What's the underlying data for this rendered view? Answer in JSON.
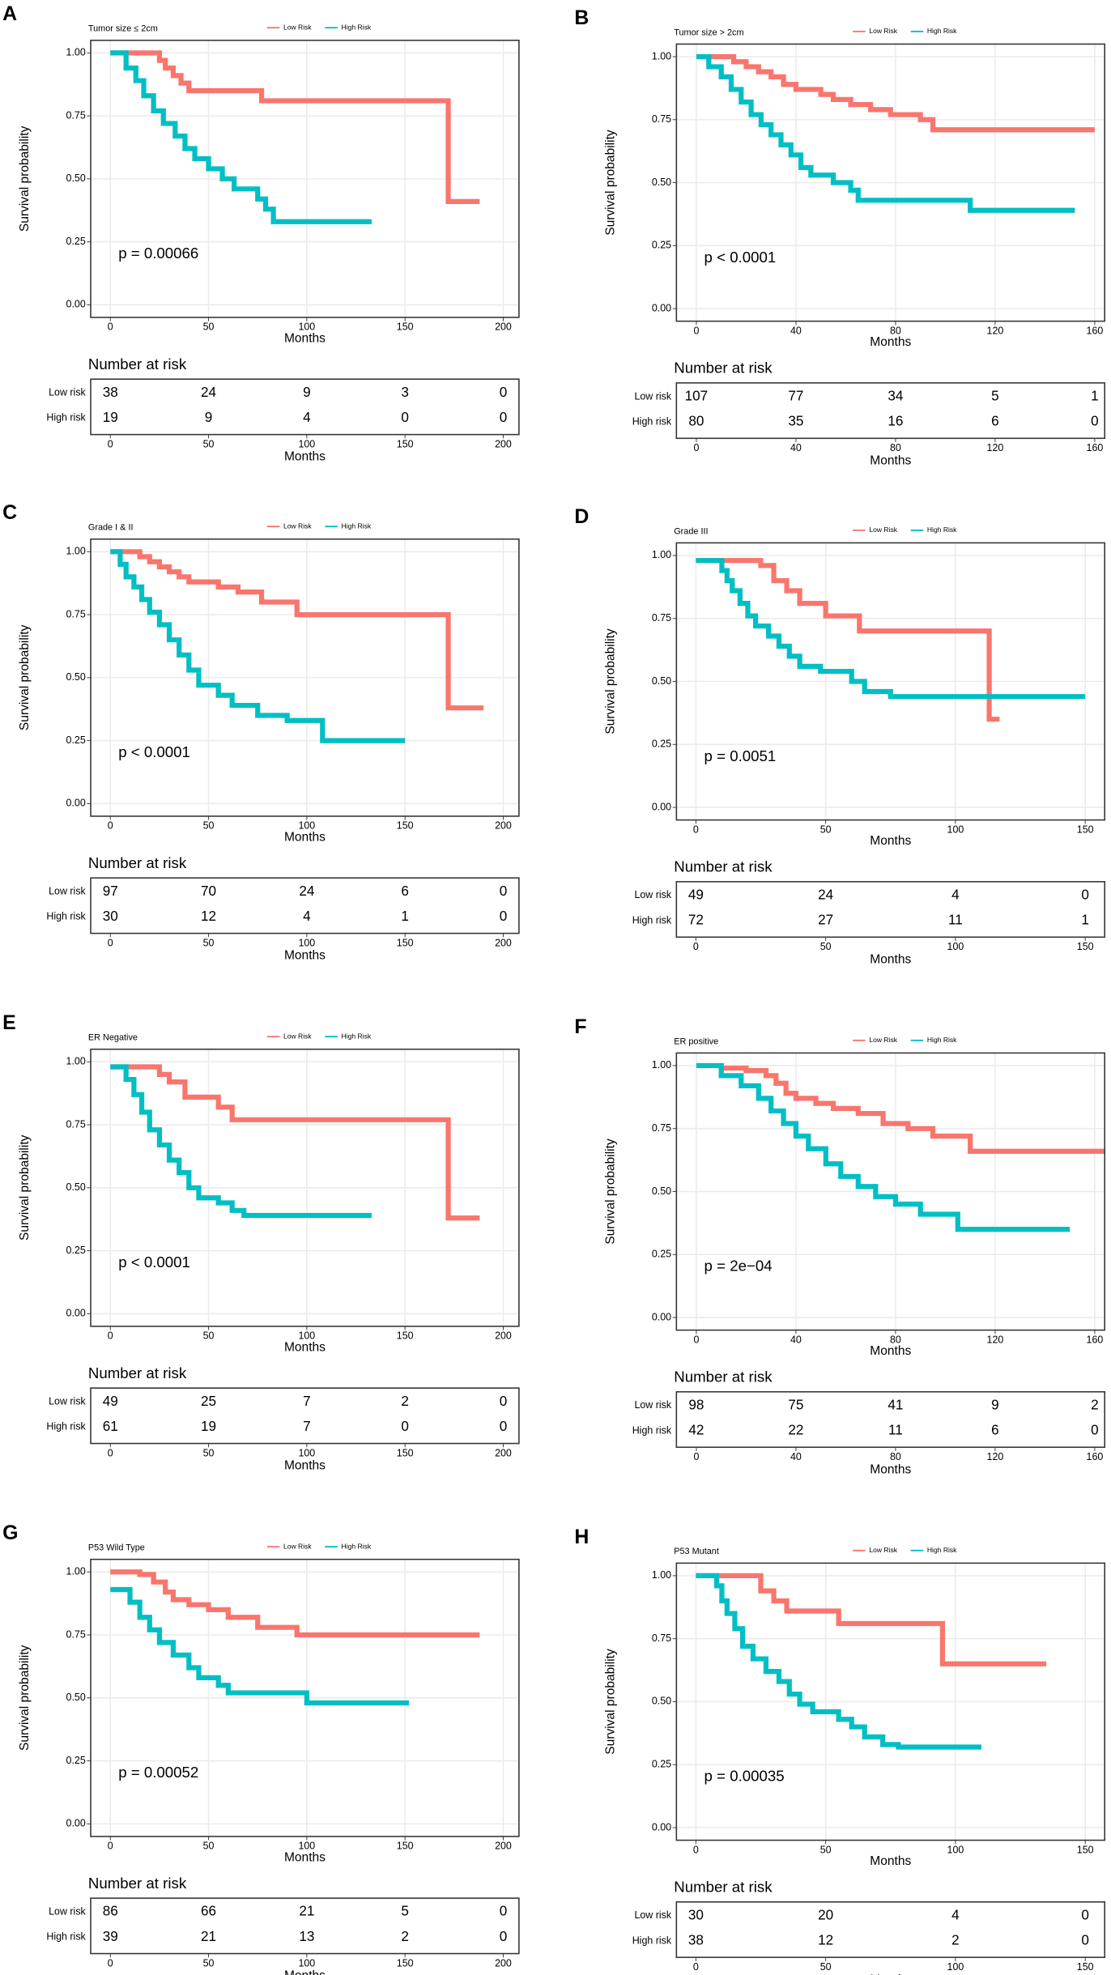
{
  "chart_data": [
    {
      "type": "step",
      "panel_label": "A",
      "title": "Tumor size ≤ 2cm",
      "p_value": "p = 0.00066",
      "xlabel": "Months",
      "ylabel": "Survival probability",
      "xlim": [
        -10,
        208
      ],
      "xticks": [
        0,
        50,
        100,
        150,
        200
      ],
      "ylim": [
        -0.05,
        1.05
      ],
      "yticks": [
        {
          "value": 0,
          "label": "0.00"
        },
        0.25,
        {
          "value": 0.5,
          "label": "0.50"
        },
        0.75,
        {
          "value": 1,
          "label": "1.00"
        }
      ],
      "series": [
        {
          "name": "Low Risk",
          "color": "#F8766D",
          "x": [
            0,
            25,
            28,
            32,
            36,
            40,
            77,
            172,
            188
          ],
          "values": [
            1,
            0.97,
            0.94,
            0.91,
            0.88,
            0.85,
            0.81,
            0.41,
            0.41
          ]
        },
        {
          "name": "High Risk",
          "color": "#00BFC4",
          "x": [
            0,
            8,
            13,
            17,
            22,
            27,
            33,
            38,
            43,
            50,
            57,
            63,
            75,
            79,
            83,
            133
          ],
          "values": [
            1,
            0.94,
            0.89,
            0.83,
            0.77,
            0.72,
            0.67,
            0.62,
            0.58,
            0.54,
            0.5,
            0.46,
            0.42,
            0.38,
            0.33,
            0.33
          ]
        }
      ],
      "risk_table": {
        "title": "Number at risk",
        "strata": [
          {
            "name": "Low risk",
            "color": "#F8766D",
            "counts": [
              38,
              24,
              9,
              3,
              0
            ]
          },
          {
            "name": "High risk",
            "color": "#00BFC4",
            "counts": [
              19,
              9,
              4,
              0,
              0
            ]
          }
        ]
      }
    },
    {
      "type": "step",
      "panel_label": "B",
      "title": "Tumor size > 2cm",
      "p_value": "p < 0.0001",
      "xlabel": "Months",
      "ylabel": "Survival probability",
      "xlim": [
        -8,
        164
      ],
      "xticks": [
        0,
        40,
        80,
        120,
        160
      ],
      "ylim": [
        -0.05,
        1.05
      ],
      "yticks": [
        {
          "value": 0,
          "label": "0.00"
        },
        0.25,
        {
          "value": 0.5,
          "label": "0.50"
        },
        0.75,
        {
          "value": 1,
          "label": "1.00"
        }
      ],
      "series": [
        {
          "name": "Low Risk",
          "color": "#F8766D",
          "x": [
            0,
            15,
            20,
            25,
            30,
            35,
            40,
            50,
            55,
            62,
            70,
            78,
            90,
            95,
            160
          ],
          "values": [
            1,
            0.98,
            0.96,
            0.94,
            0.92,
            0.89,
            0.87,
            0.85,
            0.83,
            0.81,
            0.79,
            0.77,
            0.75,
            0.71,
            0.71
          ]
        },
        {
          "name": "High Risk",
          "color": "#00BFC4",
          "x": [
            0,
            5,
            10,
            14,
            18,
            22,
            26,
            30,
            34,
            38,
            42,
            46,
            55,
            62,
            65,
            110,
            152
          ],
          "values": [
            1,
            0.96,
            0.92,
            0.87,
            0.82,
            0.77,
            0.73,
            0.69,
            0.65,
            0.61,
            0.56,
            0.53,
            0.5,
            0.47,
            0.43,
            0.39,
            0.39
          ]
        }
      ],
      "risk_table": {
        "title": "Number at risk",
        "strata": [
          {
            "name": "Low risk",
            "color": "#F8766D",
            "counts": [
              107,
              77,
              34,
              5,
              1
            ]
          },
          {
            "name": "High risk",
            "color": "#00BFC4",
            "counts": [
              80,
              35,
              16,
              6,
              0
            ]
          }
        ]
      }
    },
    {
      "type": "step",
      "panel_label": "C",
      "title": "Grade I & II",
      "p_value": "p < 0.0001",
      "xlabel": "Months",
      "ylabel": "Survival probability",
      "xlim": [
        -10,
        208
      ],
      "xticks": [
        0,
        50,
        100,
        150,
        200
      ],
      "ylim": [
        -0.05,
        1.05
      ],
      "yticks": [
        {
          "value": 0,
          "label": "0.00"
        },
        0.25,
        {
          "value": 0.5,
          "label": "0.50"
        },
        0.75,
        {
          "value": 1,
          "label": "1.00"
        }
      ],
      "series": [
        {
          "name": "Low Risk",
          "color": "#F8766D",
          "x": [
            0,
            15,
            20,
            25,
            30,
            35,
            40,
            55,
            65,
            77,
            95,
            172,
            190
          ],
          "values": [
            1,
            0.98,
            0.96,
            0.94,
            0.92,
            0.9,
            0.88,
            0.86,
            0.84,
            0.8,
            0.75,
            0.38,
            0.38
          ]
        },
        {
          "name": "High Risk",
          "color": "#00BFC4",
          "x": [
            0,
            5,
            8,
            12,
            16,
            20,
            25,
            30,
            35,
            40,
            45,
            55,
            62,
            75,
            90,
            108,
            150
          ],
          "values": [
            1,
            0.95,
            0.9,
            0.86,
            0.81,
            0.76,
            0.71,
            0.65,
            0.59,
            0.53,
            0.47,
            0.43,
            0.39,
            0.35,
            0.33,
            0.25,
            0.25
          ]
        }
      ],
      "risk_table": {
        "title": "Number at risk",
        "strata": [
          {
            "name": "Low risk",
            "color": "#F8766D",
            "counts": [
              97,
              70,
              24,
              6,
              0
            ]
          },
          {
            "name": "High risk",
            "color": "#00BFC4",
            "counts": [
              30,
              12,
              4,
              1,
              0
            ]
          }
        ]
      }
    },
    {
      "type": "step",
      "panel_label": "D",
      "title": "Grade III",
      "p_value": "p = 0.0051",
      "xlabel": "Months",
      "ylabel": "Survival probability",
      "xlim": [
        -7.5,
        157.5
      ],
      "xticks": [
        0,
        50,
        100,
        150
      ],
      "ylim": [
        -0.05,
        1.05
      ],
      "yticks": [
        {
          "value": 0,
          "label": "0.00"
        },
        0.25,
        {
          "value": 0.5,
          "label": "0.50"
        },
        0.75,
        {
          "value": 1,
          "label": "1.00"
        }
      ],
      "series": [
        {
          "name": "Low Risk",
          "color": "#F8766D",
          "x": [
            0,
            25,
            30,
            35,
            40,
            50,
            63,
            113,
            117
          ],
          "values": [
            0.98,
            0.96,
            0.9,
            0.86,
            0.81,
            0.76,
            0.7,
            0.35,
            0.35
          ]
        },
        {
          "name": "High Risk",
          "color": "#00BFC4",
          "x": [
            0,
            10,
            12,
            14,
            17,
            20,
            23,
            28,
            32,
            36,
            40,
            48,
            60,
            65,
            75,
            150
          ],
          "values": [
            0.98,
            0.94,
            0.9,
            0.86,
            0.81,
            0.76,
            0.72,
            0.68,
            0.64,
            0.6,
            0.56,
            0.54,
            0.5,
            0.46,
            0.44,
            0.44
          ]
        }
      ],
      "risk_table": {
        "title": "Number at risk",
        "strata": [
          {
            "name": "Low risk",
            "color": "#F8766D",
            "counts": [
              49,
              24,
              4,
              0
            ]
          },
          {
            "name": "High risk",
            "color": "#00BFC4",
            "counts": [
              72,
              27,
              11,
              1
            ]
          }
        ]
      }
    },
    {
      "type": "step",
      "panel_label": "E",
      "title": "ER Negative",
      "p_value": "p < 0.0001",
      "xlabel": "Months",
      "ylabel": "Survival probability",
      "xlim": [
        -10,
        208
      ],
      "xticks": [
        0,
        50,
        100,
        150,
        200
      ],
      "ylim": [
        -0.05,
        1.05
      ],
      "yticks": [
        {
          "value": 0,
          "label": "0.00"
        },
        0.25,
        {
          "value": 0.5,
          "label": "0.50"
        },
        0.75,
        {
          "value": 1,
          "label": "1.00"
        }
      ],
      "series": [
        {
          "name": "Low Risk",
          "color": "#F8766D",
          "x": [
            0,
            25,
            30,
            38,
            55,
            62,
            172,
            188
          ],
          "values": [
            0.98,
            0.95,
            0.92,
            0.86,
            0.82,
            0.77,
            0.38,
            0.38
          ]
        },
        {
          "name": "High Risk",
          "color": "#00BFC4",
          "x": [
            0,
            8,
            12,
            16,
            20,
            25,
            30,
            35,
            40,
            45,
            55,
            62,
            68,
            133
          ],
          "values": [
            0.98,
            0.93,
            0.87,
            0.8,
            0.73,
            0.67,
            0.61,
            0.56,
            0.5,
            0.46,
            0.44,
            0.41,
            0.39,
            0.39
          ]
        }
      ],
      "risk_table": {
        "title": "Number at risk",
        "strata": [
          {
            "name": "Low risk",
            "color": "#F8766D",
            "counts": [
              49,
              25,
              7,
              2,
              0
            ]
          },
          {
            "name": "High risk",
            "color": "#00BFC4",
            "counts": [
              61,
              19,
              7,
              0,
              0
            ]
          }
        ]
      }
    },
    {
      "type": "step",
      "panel_label": "F",
      "title": "ER positive",
      "p_value": "p = 2e−04",
      "xlabel": "Months",
      "ylabel": "Survival probability",
      "xlim": [
        -8,
        164
      ],
      "xticks": [
        0,
        40,
        80,
        120,
        160
      ],
      "ylim": [
        -0.05,
        1.05
      ],
      "yticks": [
        {
          "value": 0,
          "label": "0.00"
        },
        0.25,
        {
          "value": 0.5,
          "label": "0.50"
        },
        0.75,
        {
          "value": 1,
          "label": "1.00"
        }
      ],
      "series": [
        {
          "name": "Low Risk",
          "color": "#F8766D",
          "x": [
            0,
            10,
            20,
            28,
            32,
            36,
            40,
            48,
            55,
            65,
            75,
            85,
            95,
            110,
            164
          ],
          "values": [
            1,
            0.99,
            0.98,
            0.96,
            0.93,
            0.89,
            0.87,
            0.85,
            0.83,
            0.81,
            0.77,
            0.75,
            0.72,
            0.66,
            0.66
          ]
        },
        {
          "name": "High Risk",
          "color": "#00BFC4",
          "x": [
            0,
            10,
            18,
            25,
            30,
            35,
            40,
            45,
            52,
            58,
            65,
            72,
            80,
            90,
            105,
            150
          ],
          "values": [
            1,
            0.96,
            0.92,
            0.87,
            0.82,
            0.77,
            0.72,
            0.67,
            0.61,
            0.56,
            0.52,
            0.48,
            0.45,
            0.41,
            0.35,
            0.35
          ]
        }
      ],
      "risk_table": {
        "title": "Number at risk",
        "strata": [
          {
            "name": "Low risk",
            "color": "#F8766D",
            "counts": [
              98,
              75,
              41,
              9,
              2
            ]
          },
          {
            "name": "High risk",
            "color": "#00BFC4",
            "counts": [
              42,
              22,
              11,
              6,
              0
            ]
          }
        ]
      }
    },
    {
      "type": "step",
      "panel_label": "G",
      "title": "P53 Wild Type",
      "p_value": "p = 0.00052",
      "xlabel": "Months",
      "ylabel": "Survival probability",
      "xlim": [
        -10,
        208
      ],
      "xticks": [
        0,
        50,
        100,
        150,
        200
      ],
      "ylim": [
        -0.05,
        1.05
      ],
      "yticks": [
        {
          "value": 0,
          "label": "0.00"
        },
        0.25,
        {
          "value": 0.5,
          "label": "0.50"
        },
        0.75,
        {
          "value": 1,
          "label": "1.00"
        }
      ],
      "series": [
        {
          "name": "Low Risk",
          "color": "#F8766D",
          "x": [
            0,
            15,
            22,
            28,
            32,
            40,
            50,
            60,
            75,
            95,
            188
          ],
          "values": [
            1,
            0.99,
            0.96,
            0.92,
            0.89,
            0.87,
            0.85,
            0.82,
            0.78,
            0.75,
            0.75
          ]
        },
        {
          "name": "High Risk",
          "color": "#00BFC4",
          "x": [
            0,
            10,
            15,
            20,
            25,
            32,
            40,
            45,
            55,
            60,
            100,
            152
          ],
          "values": [
            0.93,
            0.88,
            0.82,
            0.77,
            0.72,
            0.67,
            0.62,
            0.58,
            0.55,
            0.52,
            0.48,
            0.48
          ]
        }
      ],
      "risk_table": {
        "title": "Number at risk",
        "strata": [
          {
            "name": "Low risk",
            "color": "#F8766D",
            "counts": [
              86,
              66,
              21,
              5,
              0
            ]
          },
          {
            "name": "High risk",
            "color": "#00BFC4",
            "counts": [
              39,
              21,
              13,
              2,
              0
            ]
          }
        ]
      }
    },
    {
      "type": "step",
      "panel_label": "H",
      "title": "P53 Mutant",
      "p_value": "p = 0.00035",
      "xlabel": "Months",
      "ylabel": "Survival probability",
      "xlim": [
        -7.5,
        157.5
      ],
      "xticks": [
        0,
        50,
        100,
        150
      ],
      "ylim": [
        -0.05,
        1.05
      ],
      "yticks": [
        {
          "value": 0,
          "label": "0.00"
        },
        0.25,
        {
          "value": 0.5,
          "label": "0.50"
        },
        0.75,
        {
          "value": 1,
          "label": "1.00"
        }
      ],
      "series": [
        {
          "name": "Low Risk",
          "color": "#F8766D",
          "x": [
            0,
            25,
            30,
            35,
            55,
            95,
            135
          ],
          "values": [
            1,
            0.94,
            0.9,
            0.86,
            0.81,
            0.65,
            0.65
          ]
        },
        {
          "name": "High Risk",
          "color": "#00BFC4",
          "x": [
            0,
            8,
            10,
            12,
            15,
            18,
            22,
            27,
            32,
            36,
            40,
            45,
            55,
            60,
            65,
            72,
            78,
            110
          ],
          "values": [
            1,
            0.96,
            0.9,
            0.85,
            0.79,
            0.72,
            0.67,
            0.62,
            0.58,
            0.53,
            0.49,
            0.46,
            0.43,
            0.4,
            0.36,
            0.33,
            0.32,
            0.32
          ]
        }
      ],
      "risk_table": {
        "title": "Number at risk",
        "strata": [
          {
            "name": "Low risk",
            "color": "#F8766D",
            "counts": [
              30,
              20,
              4,
              0
            ]
          },
          {
            "name": "High risk",
            "color": "#00BFC4",
            "counts": [
              38,
              12,
              2,
              0
            ]
          }
        ]
      }
    }
  ]
}
